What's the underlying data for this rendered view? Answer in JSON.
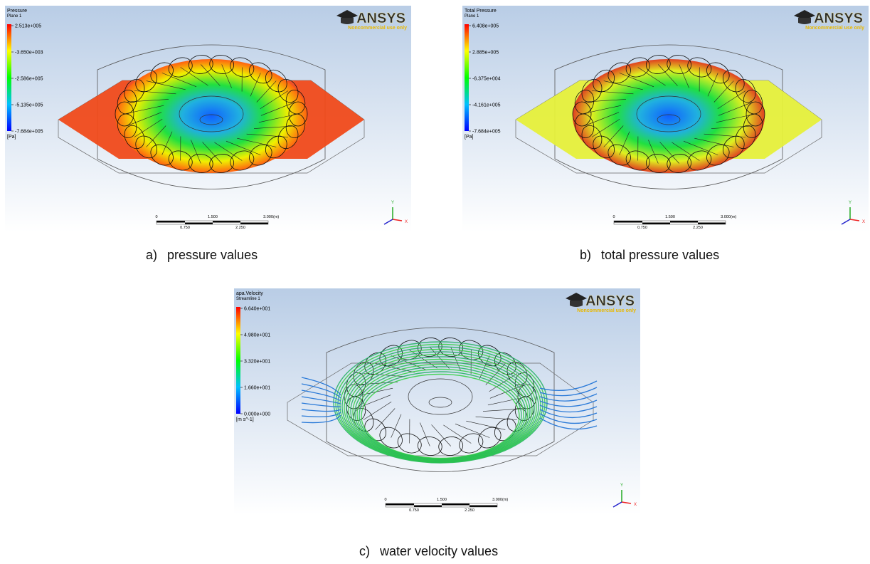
{
  "panels": [
    {
      "legend_title": "Pressure",
      "legend_subtitle": "Plane 1",
      "legend_ticks": [
        "2.513e+005",
        "-3.650e+003",
        "-2.586e+005",
        "-5.135e+005",
        "-7.684e+005"
      ],
      "unit": "[Pa]",
      "caption_letter": "a)",
      "caption": "pressure values"
    },
    {
      "legend_title": "Total Pressure",
      "legend_subtitle": "Plane 1",
      "legend_ticks": [
        "6.408e+005",
        "2.885e+005",
        "-6.375e+004",
        "-4.161e+005",
        "-7.684e+005"
      ],
      "unit": "[Pa]",
      "caption_letter": "b)",
      "caption": "total pressure values"
    },
    {
      "legend_title": "apa.Velocity",
      "legend_subtitle": "Streamline 1",
      "legend_ticks": [
        "6.640e+001",
        "4.980e+001",
        "3.320e+001",
        "1.660e+001",
        "0.000e+000"
      ],
      "unit": "[m s^-1]",
      "caption_letter": "c)",
      "caption": "water velocity values"
    }
  ],
  "logo": {
    "brand": "ANSYS",
    "note": "Noncommercial use only"
  },
  "scale": {
    "top": [
      "0",
      "1.500",
      "3.000"
    ],
    "unit": "(m)",
    "bottom": [
      "0.750",
      "2.250"
    ]
  },
  "axes": {
    "y": "Y",
    "x": "X"
  }
}
